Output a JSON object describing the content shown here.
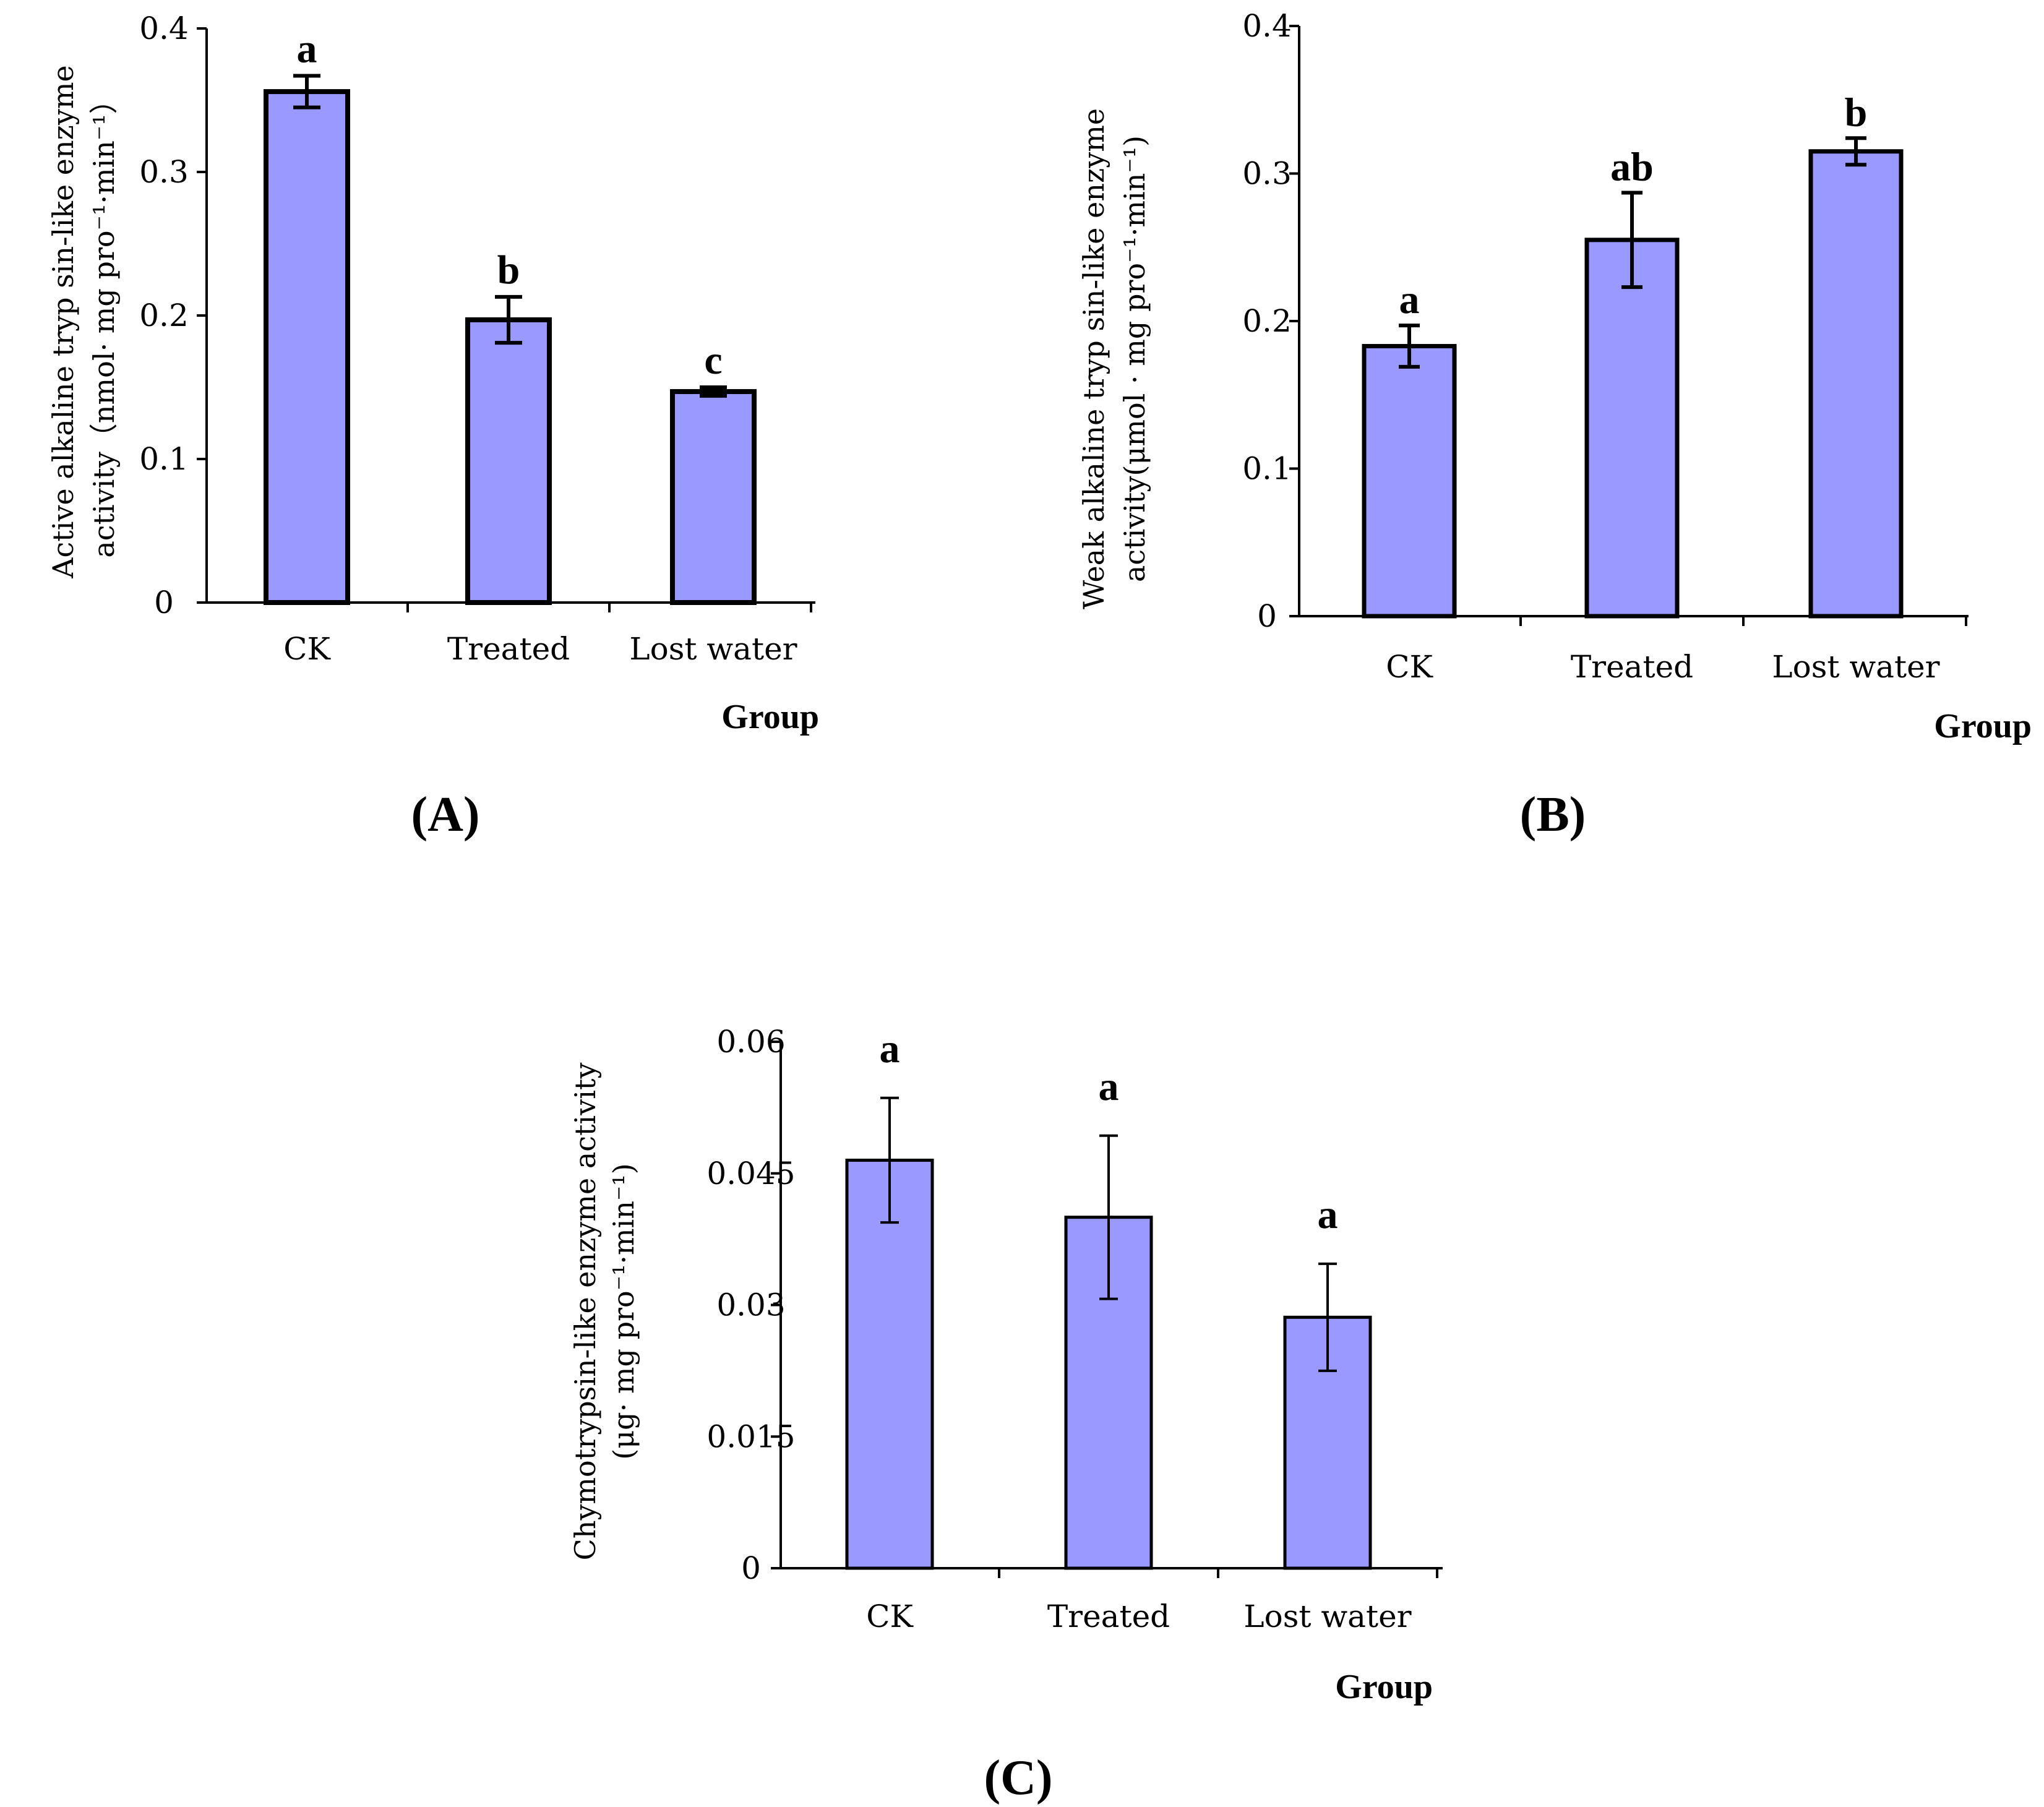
{
  "colors": {
    "bar_fill": "#9999FF",
    "bar_stroke": "#000000",
    "text": "#000000"
  },
  "chart_data": [
    {
      "id": "A",
      "type": "bar",
      "panel_label": "(A)",
      "categories": [
        "CK",
        "Treated",
        "Lost water"
      ],
      "values": [
        0.356,
        0.197,
        0.147
      ],
      "errors": [
        0.011,
        0.016,
        0.003
      ],
      "significance": [
        "a",
        "b",
        "c"
      ],
      "ylim": [
        0,
        0.4
      ],
      "yticks": [
        "0",
        "0.1",
        "0.2",
        "0.3",
        "0.4"
      ],
      "ylabel_lines": [
        "Active alkaline tryp sin-like enzyme",
        "activity（nmol· mg pro⁻¹·min⁻¹）"
      ],
      "xlabel": "Group"
    },
    {
      "id": "B",
      "type": "bar",
      "panel_label": "(B)",
      "categories": [
        "CK",
        "Treated",
        "Lost water"
      ],
      "values": [
        0.183,
        0.255,
        0.315
      ],
      "errors": [
        0.014,
        0.032,
        0.009
      ],
      "significance": [
        "a",
        "ab",
        "b"
      ],
      "ylim": [
        0,
        0.4
      ],
      "yticks": [
        "0",
        "0.1",
        "0.2",
        "0.3",
        "0.4"
      ],
      "ylabel_lines": [
        "Weak alkaline tryp sin-like enzyme",
        "activity(μmol · mg pro⁻¹·min⁻¹)"
      ],
      "xlabel": "Group"
    },
    {
      "id": "C",
      "type": "bar",
      "panel_label": "(C)",
      "categories": [
        "CK",
        "Treated",
        "Lost water"
      ],
      "values": [
        0.0465,
        0.04,
        0.0286
      ],
      "errors": [
        0.0071,
        0.0093,
        0.0061
      ],
      "significance": [
        "a",
        "a",
        "a"
      ],
      "ylim": [
        0,
        0.06
      ],
      "yticks": [
        "0",
        "0.015",
        "0.03",
        "0.045",
        "0.06"
      ],
      "ylabel_lines": [
        "Chymotrypsin-like enzyme activity",
        "(μg· mg pro⁻¹·min⁻¹)"
      ],
      "xlabel": "Group"
    }
  ]
}
